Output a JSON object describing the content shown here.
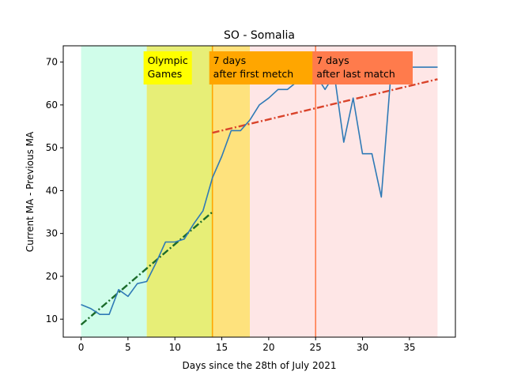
{
  "chart_data": {
    "type": "line",
    "title": "SO - Somalia",
    "xlabel": "Days since the 28th of July 2021",
    "ylabel": "Current MA - Previous MA",
    "xlim": [
      -1.9,
      39.9
    ],
    "ylim": [
      5.8,
      73.8
    ],
    "xticks": [
      0,
      5,
      10,
      15,
      20,
      25,
      30,
      35
    ],
    "yticks": [
      10,
      20,
      30,
      40,
      50,
      60,
      70
    ],
    "grid": false,
    "bands": [
      {
        "x0": 0,
        "x1": 7,
        "color": "#d0fdea"
      },
      {
        "x0": 7,
        "x1": 14,
        "color": "#e7ee77"
      },
      {
        "x0": 14,
        "x1": 18,
        "color": "#fee27d"
      },
      {
        "x0": 18,
        "x1": 38,
        "color": "#fee6e6"
      }
    ],
    "vlines": [
      {
        "x": 14,
        "color": "#ffa600"
      },
      {
        "x": 25,
        "color": "#ff7b4c"
      }
    ],
    "annotations": [
      {
        "lines": [
          "Olympic",
          "Games"
        ],
        "x": 7,
        "color": "#ffff00"
      },
      {
        "lines": [
          "7 days",
          "after first metch"
        ],
        "x": 14,
        "color": "#ffa600"
      },
      {
        "lines": [
          "7 days",
          "after last match"
        ],
        "x": 25,
        "color": "#ff7b4c"
      }
    ],
    "series": [
      {
        "color": "#2f7ab6",
        "x": [
          0,
          1,
          2,
          3,
          4,
          5,
          6,
          7,
          8,
          9,
          10,
          11,
          12,
          13,
          14,
          15,
          16,
          17,
          18,
          19,
          20,
          21,
          22,
          23,
          24,
          25,
          26,
          27,
          28,
          29,
          30,
          31,
          32,
          33,
          34,
          35,
          36,
          37,
          38
        ],
        "y": [
          13.4,
          12.5,
          11.1,
          11.1,
          16.9,
          15.3,
          18.3,
          18.8,
          23.2,
          28.0,
          28.0,
          28.7,
          32.2,
          35.3,
          43.0,
          48.0,
          54.0,
          54.0,
          56.5,
          60.0,
          61.6,
          63.6,
          63.6,
          65.4,
          66.1,
          67.1,
          63.6,
          67.1,
          51.3,
          61.6,
          48.6,
          48.6,
          38.5,
          66.5,
          72.0,
          68.8,
          68.8,
          68.8,
          68.8
        ]
      }
    ],
    "trendlines": [
      {
        "x": [
          0,
          14
        ],
        "y": [
          8.7,
          35.0
        ],
        "color": "#1b6b2a",
        "dash": "9,3,2,3"
      },
      {
        "x": [
          14,
          38
        ],
        "y": [
          53.5,
          66.0
        ],
        "color": "#d9432a",
        "dash": "9,3,2,3"
      }
    ]
  }
}
